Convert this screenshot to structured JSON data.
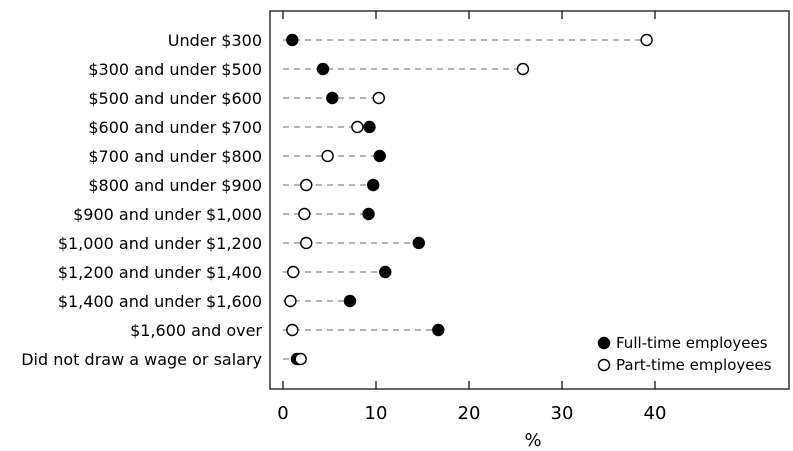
{
  "chart_data": {
    "type": "scatter",
    "orientation": "horizontal-dot-plot",
    "xlabel": "%",
    "xlim": [
      -0.5,
      41
    ],
    "xticks": [
      0,
      10,
      20,
      30,
      40
    ],
    "grid": false,
    "legend_position": "bottom-right",
    "categories": [
      "Under $300",
      "$300 and under $500",
      "$500 and under $600",
      "$600 and under $700",
      "$700 and under $800",
      "$800 and under $900",
      "$900 and under $1,000",
      "$1,000 and under $1,200",
      "$1,200 and under $1,400",
      "$1,400 and under $1,600",
      "$1,600 and over",
      "Did not draw a wage or salary"
    ],
    "series": [
      {
        "name": "Full-time employees",
        "marker": "filled-circle",
        "values": [
          1.0,
          4.3,
          5.3,
          9.3,
          10.4,
          9.7,
          9.2,
          14.6,
          11.0,
          7.2,
          16.7,
          1.5
        ]
      },
      {
        "name": "Part-time employees",
        "marker": "open-circle",
        "values": [
          39.1,
          25.8,
          10.3,
          8.0,
          4.8,
          2.5,
          2.3,
          2.5,
          1.1,
          0.8,
          1.0,
          1.9
        ]
      }
    ]
  }
}
